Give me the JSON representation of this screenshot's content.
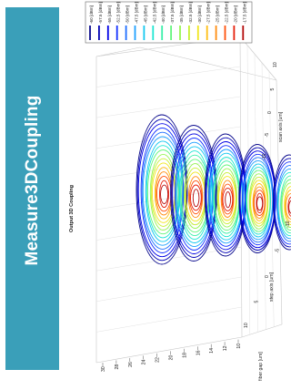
{
  "sidebar": {
    "title": "Measure3DCoupling",
    "color": "#3a9fb9"
  },
  "chart_data": {
    "type": "contour3d",
    "title": "Output 3D Coupling",
    "z_axis": {
      "label": "fiber gap [um]",
      "ticks": [
        "30",
        "28",
        "26",
        "24",
        "22",
        "20",
        "18",
        "16",
        "14",
        "12",
        "10"
      ],
      "range": [
        10,
        30
      ]
    },
    "x_axis": {
      "label": "step axis [um]",
      "ticks": [
        "10",
        "5",
        "0",
        "-5",
        "-10"
      ],
      "range": [
        -10,
        10
      ]
    },
    "y_axis": {
      "label": "scan axis [um]",
      "ticks": [
        "-10",
        "-5",
        "0",
        "5",
        "10"
      ],
      "range": [
        -10,
        10
      ]
    },
    "legend": {
      "placement": "top-right",
      "entries": [
        {
          "label": "-60 [dBm]",
          "color": "#0a0a8c"
        },
        {
          "label": "-57.5 [dBm]",
          "color": "#0000b4"
        },
        {
          "label": "-55 [dBm]",
          "color": "#0000e6"
        },
        {
          "label": "-52.5 [dBm]",
          "color": "#1432ff"
        },
        {
          "label": "-50 [dBm]",
          "color": "#1e6eff"
        },
        {
          "label": "-47.5 [dBm]",
          "color": "#1ea0ff"
        },
        {
          "label": "-45 [dBm]",
          "color": "#14c8f0"
        },
        {
          "label": "-42.5 [dBm]",
          "color": "#1ee6d2"
        },
        {
          "label": "-40 [dBm]",
          "color": "#3cf0aa"
        },
        {
          "label": "-37.5 [dBm]",
          "color": "#64f57d"
        },
        {
          "label": "-35 [dBm]",
          "color": "#96f550"
        },
        {
          "label": "-32.5 [dBm]",
          "color": "#c8f032"
        },
        {
          "label": "-30 [dBm]",
          "color": "#f0e61e"
        },
        {
          "label": "-27.5 [dBm]",
          "color": "#ffbe14"
        },
        {
          "label": "-25 [dBm]",
          "color": "#ff8c0f"
        },
        {
          "label": "-22.5 [dBm]",
          "color": "#ff500a"
        },
        {
          "label": "-20 [dBm]",
          "color": "#e61e0a"
        },
        {
          "label": "-17.5 [dBm]",
          "color": "#b40a0a"
        }
      ]
    },
    "slices": [
      {
        "fiber_gap": 28,
        "levels": 17
      },
      {
        "fiber_gap": 24,
        "levels": 16
      },
      {
        "fiber_gap": 20,
        "levels": 16
      },
      {
        "fiber_gap": 16,
        "levels": 17
      },
      {
        "fiber_gap": 12,
        "levels": 14
      }
    ]
  }
}
